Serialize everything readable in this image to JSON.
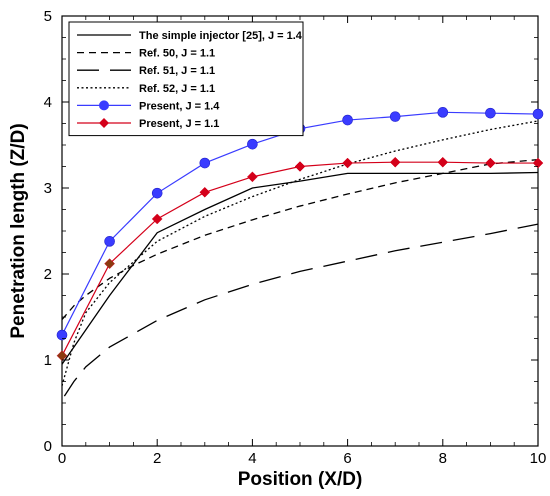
{
  "chart_data": {
    "type": "line",
    "title": "",
    "xlabel": "Position (X/D)",
    "ylabel": "Penetration length (Z/D)",
    "xlim": [
      0,
      10
    ],
    "ylim": [
      0,
      5
    ],
    "xticks": [
      0,
      2,
      4,
      6,
      8,
      10
    ],
    "yticks": [
      0,
      1,
      2,
      3,
      4,
      5
    ],
    "grid": false,
    "legend_position": "top-left",
    "series": [
      {
        "name": "The simple injector [25], J = 1.4",
        "color": "#000000",
        "dash": "solid",
        "marker": "none",
        "x": [
          0,
          0.5,
          1,
          2,
          3,
          4,
          5,
          6,
          7,
          8,
          9,
          10
        ],
        "y": [
          0.95,
          1.35,
          1.75,
          2.48,
          2.75,
          3.0,
          3.08,
          3.17,
          3.17,
          3.17,
          3.17,
          3.18
        ]
      },
      {
        "name": "Ref. 50, J = 1.1",
        "color": "#000000",
        "dash": "medium-dash",
        "marker": "none",
        "x": [
          0,
          0.25,
          0.5,
          1,
          1.5,
          2,
          3,
          4,
          5,
          6,
          7,
          8,
          9,
          10
        ],
        "y": [
          1.47,
          1.63,
          1.75,
          1.95,
          2.1,
          2.23,
          2.45,
          2.63,
          2.79,
          2.93,
          3.06,
          3.17,
          3.28,
          3.33
        ]
      },
      {
        "name": "Ref. 51, J = 1.1",
        "color": "#000000",
        "dash": "long-dash",
        "marker": "none",
        "x": [
          0.05,
          0.25,
          0.5,
          1,
          2,
          3,
          4,
          5,
          6,
          7,
          8,
          9,
          10
        ],
        "y": [
          0.58,
          0.75,
          0.92,
          1.15,
          1.46,
          1.7,
          1.88,
          2.03,
          2.15,
          2.27,
          2.37,
          2.47,
          2.58
        ]
      },
      {
        "name": "Ref. 52, J = 1.1",
        "color": "#000000",
        "dash": "dotted",
        "marker": "none",
        "x": [
          0,
          0.25,
          0.5,
          1,
          2,
          3,
          4,
          5,
          6,
          7,
          8,
          9,
          10
        ],
        "y": [
          0.7,
          1.2,
          1.55,
          1.9,
          2.38,
          2.67,
          2.9,
          3.1,
          3.28,
          3.43,
          3.56,
          3.68,
          3.78
        ]
      },
      {
        "name": "Present, J = 1.4",
        "color": "#3a3cff",
        "dash": "solid",
        "marker": "circle",
        "x": [
          0,
          1,
          2,
          3,
          4,
          5,
          6,
          7,
          8,
          9,
          10
        ],
        "y": [
          1.29,
          2.38,
          2.94,
          3.29,
          3.51,
          3.69,
          3.79,
          3.83,
          3.88,
          3.87,
          3.86
        ]
      },
      {
        "name": "Present, J = 1.1",
        "color": "#d4001a",
        "dash": "solid",
        "marker": "diamond",
        "x": [
          0,
          1,
          2,
          3,
          4,
          5,
          6,
          7,
          8,
          9,
          10
        ],
        "y": [
          1.05,
          2.12,
          2.64,
          2.95,
          3.13,
          3.25,
          3.29,
          3.3,
          3.3,
          3.29,
          3.29
        ]
      }
    ]
  }
}
